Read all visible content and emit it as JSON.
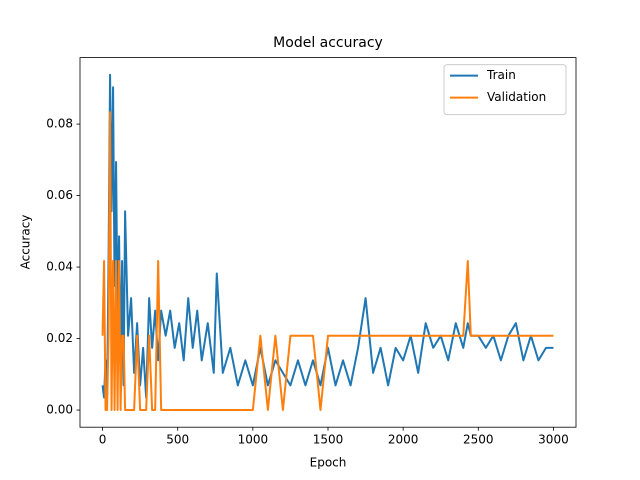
{
  "chart_data": {
    "type": "line",
    "title": "Model accuracy",
    "x_label": "Epoch",
    "y_label": "Accuracy",
    "x": [
      0,
      10,
      20,
      30,
      40,
      50,
      60,
      70,
      80,
      90,
      100,
      110,
      120,
      130,
      140,
      150,
      170,
      190,
      210,
      230,
      250,
      270,
      290,
      310,
      330,
      350,
      370,
      390,
      420,
      450,
      480,
      510,
      540,
      570,
      600,
      630,
      660,
      700,
      740,
      760,
      800,
      850,
      900,
      950,
      1000,
      1050,
      1100,
      1150,
      1200,
      1250,
      1300,
      1350,
      1400,
      1450,
      1500,
      1550,
      1600,
      1650,
      1700,
      1750,
      1800,
      1850,
      1900,
      1950,
      2000,
      2050,
      2100,
      2150,
      2200,
      2250,
      2300,
      2350,
      2400,
      2430,
      2450,
      2500,
      2550,
      2600,
      2650,
      2700,
      2750,
      2800,
      2850,
      2900,
      2950,
      3000
    ],
    "series": [
      {
        "name": "Train",
        "color": "#1f77b4",
        "values": [
          0.0069,
          0.0035,
          0.0139,
          0.0035,
          0.0417,
          0.0938,
          0.0556,
          0.0903,
          0.0347,
          0.0694,
          0.0243,
          0.0486,
          0.0139,
          0.0417,
          0.0069,
          0.0556,
          0.0208,
          0.0313,
          0.0104,
          0.0243,
          0.0069,
          0.0174,
          0.0035,
          0.0313,
          0.0174,
          0.0278,
          0.0139,
          0.0278,
          0.0208,
          0.0278,
          0.0174,
          0.0243,
          0.0139,
          0.0313,
          0.0174,
          0.0278,
          0.0139,
          0.0243,
          0.0104,
          0.0382,
          0.0104,
          0.0174,
          0.0069,
          0.0139,
          0.0069,
          0.0174,
          0.0069,
          0.0139,
          0.0104,
          0.0069,
          0.0139,
          0.0069,
          0.0139,
          0.0069,
          0.0174,
          0.0069,
          0.0139,
          0.0069,
          0.0174,
          0.0313,
          0.0104,
          0.0174,
          0.0069,
          0.0174,
          0.0139,
          0.0208,
          0.0104,
          0.0243,
          0.0174,
          0.0208,
          0.0139,
          0.0243,
          0.0174,
          0.0243,
          0.0208,
          0.0208,
          0.0174,
          0.0208,
          0.0139,
          0.0208,
          0.0243,
          0.0139,
          0.0208,
          0.0139,
          0.0174,
          0.0174
        ]
      },
      {
        "name": "Validation",
        "color": "#ff7f0e",
        "values": [
          0.0208,
          0.0417,
          0,
          0,
          0.0208,
          0.0833,
          0,
          0.0417,
          0,
          0.0417,
          0,
          0.0417,
          0,
          0.0208,
          0.0208,
          0,
          0,
          0,
          0,
          0.0208,
          0,
          0,
          0,
          0.0208,
          0,
          0,
          0.0417,
          0,
          0,
          0,
          0,
          0,
          0,
          0,
          0,
          0,
          0,
          0,
          0,
          0,
          0,
          0,
          0,
          0,
          0,
          0.0208,
          0,
          0.0208,
          0,
          0.0208,
          0.0208,
          0.0208,
          0.0208,
          0,
          0.0208,
          0.0208,
          0.0208,
          0.0208,
          0.0208,
          0.0208,
          0.0208,
          0.0208,
          0.0208,
          0.0208,
          0.0208,
          0.0208,
          0.0208,
          0.0208,
          0.0208,
          0.0208,
          0.0208,
          0.0208,
          0.0208,
          0.0417,
          0.0208,
          0.0208,
          0.0208,
          0.0208,
          0.0208,
          0.0208,
          0.0208,
          0.0208,
          0.0208,
          0.0208,
          0.0208,
          0.0208
        ]
      }
    ],
    "xlim": [
      -150,
      3150
    ],
    "ylim": [
      -0.0048,
      0.0986
    ],
    "xticks": [
      0,
      500,
      1000,
      1500,
      2000,
      2500,
      3000
    ],
    "yticks": [
      {
        "value": 0,
        "label": "0.00"
      },
      {
        "value": 0.02,
        "label": "0.02"
      },
      {
        "value": 0.04,
        "label": "0.04"
      },
      {
        "value": 0.06,
        "label": "0.06"
      },
      {
        "value": 0.08,
        "label": "0.08"
      }
    ],
    "legend": "upper right"
  }
}
